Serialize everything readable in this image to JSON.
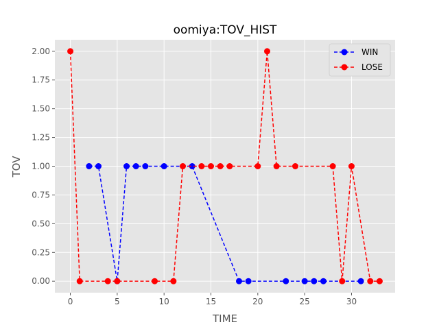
{
  "chart_data": {
    "type": "line",
    "title": "oomiya:TOV_HIST",
    "xlabel": "TIME",
    "ylabel": "TOV",
    "xlim": [
      -1.65,
      34.65
    ],
    "ylim": [
      -0.1,
      2.1
    ],
    "xticks": [
      0,
      5,
      10,
      15,
      20,
      25,
      30
    ],
    "yticks": [
      0.0,
      0.25,
      0.5,
      0.75,
      1.0,
      1.25,
      1.5,
      1.75,
      2.0
    ],
    "xtick_labels": [
      "0",
      "5",
      "10",
      "15",
      "20",
      "25",
      "30"
    ],
    "ytick_labels": [
      "0.00",
      "0.25",
      "0.50",
      "0.75",
      "1.00",
      "1.25",
      "1.50",
      "1.75",
      "2.00"
    ],
    "grid": true,
    "legend_position": "top-right",
    "series": [
      {
        "name": "WIN",
        "color": "#0000ff",
        "x": [
          2,
          3,
          5,
          6,
          7,
          8,
          10,
          13,
          18,
          19,
          23,
          25,
          26,
          27,
          31
        ],
        "y": [
          1,
          1,
          0,
          1,
          1,
          1,
          1,
          1,
          0,
          0,
          0,
          0,
          0,
          0,
          0
        ]
      },
      {
        "name": "LOSE",
        "color": "#ff0000",
        "x": [
          0,
          1,
          4,
          5,
          9,
          11,
          12,
          14,
          15,
          16,
          17,
          20,
          21,
          22,
          24,
          28,
          29,
          30,
          32,
          33
        ],
        "y": [
          2,
          0,
          0,
          0,
          0,
          0,
          1,
          1,
          1,
          1,
          1,
          1,
          2,
          1,
          1,
          1,
          0,
          1,
          0,
          0
        ]
      }
    ]
  }
}
